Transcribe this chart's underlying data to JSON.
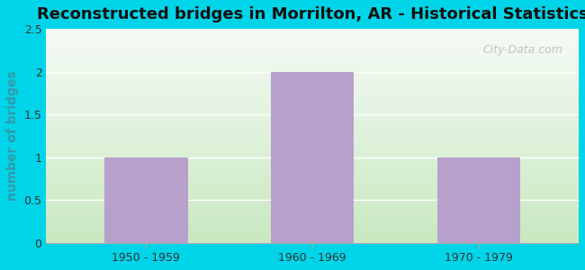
{
  "title": "Reconstructed bridges in Morrilton, AR - Historical Statistics",
  "categories": [
    "1950 - 1959",
    "1960 - 1969",
    "1970 - 1979"
  ],
  "values": [
    1,
    2,
    1
  ],
  "bar_color": "#b8a0cc",
  "ylabel": "number of bridges",
  "ylim": [
    0,
    2.5
  ],
  "yticks": [
    0,
    0.5,
    1,
    1.5,
    2,
    2.5
  ],
  "background_outer": "#00d4e8",
  "background_inner_top": "#f5faf5",
  "background_inner_bottom": "#c8e8c0",
  "title_fontsize": 13,
  "axis_label_fontsize": 10,
  "tick_fontsize": 9,
  "watermark_text": "City-Data.com",
  "ylabel_color": "#3399aa",
  "title_color": "#111111",
  "tick_color": "#333333",
  "grid_color": "#ffffff",
  "spine_color": "#aaaaaa"
}
